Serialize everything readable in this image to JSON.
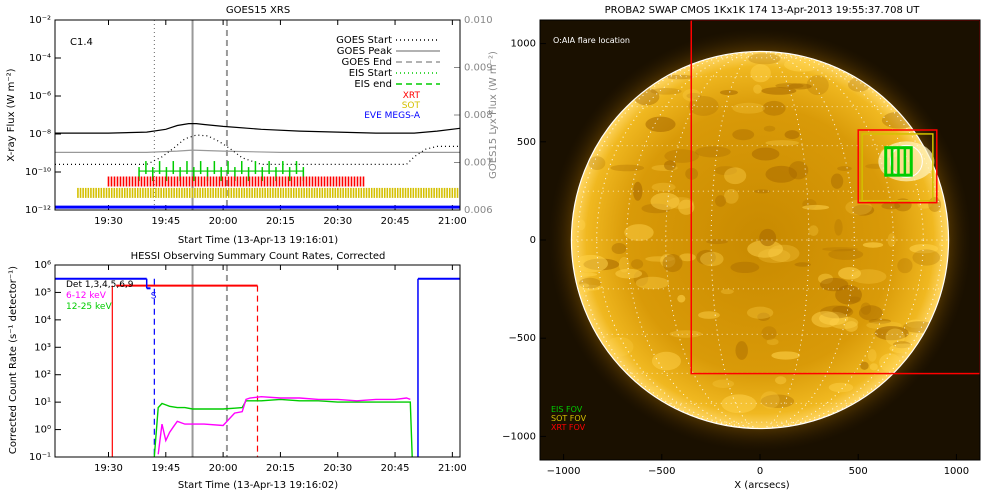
{
  "chart_data": [
    {
      "type": "line",
      "title": "GOES15 XRS",
      "xlabel": "Start Time (13-Apr-13 19:16:01)",
      "ylabel": "X-ray Flux (W m⁻²)",
      "ylabel_right": "GOES15 Lyx Flux (W m⁻²)",
      "x_range_min": [
        1156,
        1262
      ],
      "x_ticks": [
        {
          "min": 1170,
          "label": "19:30"
        },
        {
          "min": 1185,
          "label": "19:45"
        },
        {
          "min": 1200,
          "label": "20:00"
        },
        {
          "min": 1215,
          "label": "20:15"
        },
        {
          "min": 1230,
          "label": "20:30"
        },
        {
          "min": 1245,
          "label": "20:45"
        },
        {
          "min": 1260,
          "label": "21:00"
        }
      ],
      "ylim_log": [
        -12,
        -2
      ],
      "y_ticks": [
        {
          "exp": -12,
          "label": "10⁻¹²"
        },
        {
          "exp": -10,
          "label": "10⁻¹⁰"
        },
        {
          "exp": -8,
          "label": "10⁻⁸"
        },
        {
          "exp": -6,
          "label": "10⁻⁶"
        },
        {
          "exp": -4,
          "label": "10⁻⁴"
        },
        {
          "exp": -2,
          "label": "10⁻²"
        }
      ],
      "y2_ticks": [
        "0.006",
        "0.007",
        "0.008",
        "0.009",
        "0.010"
      ],
      "y2_range": [
        0.006,
        0.01
      ],
      "annotation": "C1.4",
      "legend": [
        {
          "label": "GOES Start",
          "color": "#000000",
          "style": "dotted"
        },
        {
          "label": "GOES Peak",
          "color": "#999999",
          "style": "solid"
        },
        {
          "label": "GOES End",
          "color": "#999999",
          "style": "dashed"
        },
        {
          "label": "EIS Start",
          "color": "#00cc00",
          "style": "dotted"
        },
        {
          "label": "EIS end",
          "color": "#00cc00",
          "style": "dashed"
        },
        {
          "label": "XRT",
          "color": "#ff0000",
          "style": "text"
        },
        {
          "label": "SOT",
          "color": "#d4c000",
          "style": "text"
        },
        {
          "label": "EVE MEGS-A",
          "color": "#0000ff",
          "style": "text"
        }
      ],
      "vlines_min": {
        "goes_start": 1182,
        "goes_peak": 1192,
        "goes_end": 1201
      },
      "series": [
        {
          "color": "#000000",
          "style": "solid",
          "x": [
            1156,
            1170,
            1180,
            1185,
            1188,
            1191,
            1193,
            1195,
            1200,
            1210,
            1220,
            1230,
            1240,
            1250,
            1256,
            1262
          ],
          "y": [
            -7.95,
            -7.95,
            -7.9,
            -7.75,
            -7.55,
            -7.45,
            -7.45,
            -7.5,
            -7.6,
            -7.75,
            -7.85,
            -7.9,
            -7.95,
            -7.95,
            -7.85,
            -7.7
          ]
        },
        {
          "color": "#999999",
          "style": "solid",
          "x": [
            1156,
            1180,
            1188,
            1192,
            1200,
            1215,
            1240,
            1262
          ],
          "y": [
            -8.97,
            -8.97,
            -8.9,
            -8.85,
            -8.9,
            -8.97,
            -8.97,
            -8.97
          ]
        },
        {
          "color": "#000000",
          "style": "dotted",
          "x": [
            1156,
            1180,
            1184,
            1187,
            1190,
            1193,
            1196,
            1199,
            1202,
            1205,
            1210,
            1220,
            1235,
            1248,
            1250,
            1253,
            1256,
            1262
          ],
          "y": [
            -9.6,
            -9.6,
            -9.2,
            -8.75,
            -8.25,
            -8.05,
            -8.1,
            -8.4,
            -8.8,
            -9.25,
            -9.6,
            -9.6,
            -9.6,
            -9.6,
            -9.2,
            -8.8,
            -8.65,
            -8.65
          ]
        }
      ],
      "bands": [
        {
          "name": "EIS",
          "color": "#00cc00",
          "y": -9.95,
          "x": [
            1178,
            1221
          ]
        },
        {
          "name": "XRT",
          "color": "#ff0000",
          "y": -10.5,
          "x": [
            1170,
            1237
          ]
        },
        {
          "name": "SOT",
          "color": "#d4c000",
          "y": -11.1,
          "x": [
            1162,
            1262
          ]
        },
        {
          "name": "EVE MEGS-A",
          "color": "#0000ff",
          "y": -11.85,
          "x": [
            1156,
            1262
          ]
        }
      ]
    },
    {
      "type": "line",
      "title": "HESSI Observing Summary Count Rates, Corrected",
      "xlabel": "Start Time (13-Apr-13 19:16:02)",
      "ylabel": "Corrected Count Rate (s⁻¹ detector⁻¹)",
      "x_range_min": [
        1156,
        1262
      ],
      "x_ticks": [
        {
          "min": 1170,
          "label": "19:30"
        },
        {
          "min": 1185,
          "label": "19:45"
        },
        {
          "min": 1200,
          "label": "20:00"
        },
        {
          "min": 1215,
          "label": "20:15"
        },
        {
          "min": 1230,
          "label": "20:30"
        },
        {
          "min": 1245,
          "label": "20:45"
        },
        {
          "min": 1260,
          "label": "21:00"
        }
      ],
      "ylim_log": [
        -1,
        6
      ],
      "y_ticks": [
        {
          "exp": -1,
          "label": "10⁻¹"
        },
        {
          "exp": 0,
          "label": "10⁰"
        },
        {
          "exp": 1,
          "label": "10¹"
        },
        {
          "exp": 2,
          "label": "10²"
        },
        {
          "exp": 3,
          "label": "10³"
        },
        {
          "exp": 4,
          "label": "10⁴"
        },
        {
          "exp": 5,
          "label": "10⁵"
        },
        {
          "exp": 6,
          "label": "10⁶"
        }
      ],
      "legend": [
        {
          "label": "Det 1,3,4,5,6,9",
          "color": "#000000"
        },
        {
          "label": "6-12 keV",
          "color": "#ff00ff"
        },
        {
          "label": "12-25 keV",
          "color": "#00cc00"
        }
      ],
      "marker_label": "S",
      "vlines_min": {
        "goes_peak": 1192,
        "goes_end": 1201,
        "red_solid": 1171,
        "blue_dashed": 1182,
        "red_dashed": 1209
      },
      "series": [
        {
          "name": "12-25 keV",
          "color": "#00cc00",
          "x": [
            1182,
            1183,
            1184,
            1185,
            1186,
            1188,
            1190,
            1192,
            1195,
            1198,
            1200,
            1203,
            1205,
            1206,
            1207,
            1210,
            1215,
            1220,
            1225,
            1230,
            1235,
            1240,
            1245,
            1248,
            1249,
            1249.5
          ],
          "y": [
            -1,
            0.8,
            0.95,
            0.9,
            0.85,
            0.8,
            0.8,
            0.75,
            0.75,
            0.75,
            0.75,
            0.78,
            0.8,
            1.05,
            1.05,
            1.05,
            1.1,
            1.05,
            1.05,
            1.0,
            1.0,
            1.0,
            1.0,
            1.0,
            1.0,
            -1
          ]
        },
        {
          "name": "6-12 keV",
          "color": "#ff00ff",
          "x": [
            1183,
            1184,
            1185,
            1186,
            1187,
            1188,
            1190,
            1195,
            1200,
            1203,
            1205,
            1206,
            1207,
            1210,
            1215,
            1220,
            1225,
            1230,
            1235,
            1240,
            1245,
            1248,
            1249
          ],
          "y": [
            -0.9,
            0.2,
            -0.4,
            -0.1,
            0.1,
            0.3,
            0.2,
            0.2,
            0.15,
            0.6,
            0.65,
            1.1,
            1.15,
            1.2,
            1.15,
            1.15,
            1.1,
            1.1,
            1.05,
            1.1,
            1.1,
            1.15,
            1.1
          ]
        }
      ],
      "steps": [
        {
          "name": "attenuator",
          "color": "#0000ff",
          "segments": [
            [
              1156,
              1180,
              5.5
            ],
            [
              1180,
              1181,
              5.15
            ],
            [
              1251,
              1262,
              5.5
            ]
          ]
        },
        {
          "name": "level",
          "color": "#ff0000",
          "segments": [
            [
              1172,
              1209,
              5.25
            ]
          ]
        }
      ]
    },
    {
      "type": "image",
      "title": "PROBA2 SWAP CMOS 1Kx1K 174 13-Apr-2013 19:55:37.708 UT",
      "xlabel": "X (arcsecs)",
      "x_ticks": [
        "−1000",
        "−500",
        "0",
        "500",
        "1000"
      ],
      "y_ticks": [
        "−1000",
        "−500",
        "0",
        "500",
        "1000"
      ],
      "xlim": [
        -1120,
        1120
      ],
      "ylim": [
        -1120,
        1120
      ],
      "annotation": "O:AIA flare location",
      "legend": [
        {
          "label": "EIS FOV",
          "color": "#00cc00"
        },
        {
          "label": "SOT FOV",
          "color": "#d4c000"
        },
        {
          "label": "XRT FOV",
          "color": "#ff0000"
        }
      ],
      "sun_radius_arcsec": 960,
      "boxes": [
        {
          "name": "xrt-large",
          "color": "#ff0000",
          "x": [
            -350,
            1120
          ],
          "y": [
            -680,
            1120
          ]
        },
        {
          "name": "xrt-small",
          "color": "#ff0000",
          "x": [
            500,
            900
          ],
          "y": [
            190,
            560
          ]
        },
        {
          "name": "sot",
          "color": "#d4c000",
          "x": [
            520,
            880
          ],
          "y": [
            200,
            540
          ]
        },
        {
          "name": "eis",
          "color": "#00cc00",
          "x": [
            640,
            770
          ],
          "y": [
            330,
            470
          ]
        }
      ],
      "flare_location": [
        745,
        400
      ]
    }
  ]
}
